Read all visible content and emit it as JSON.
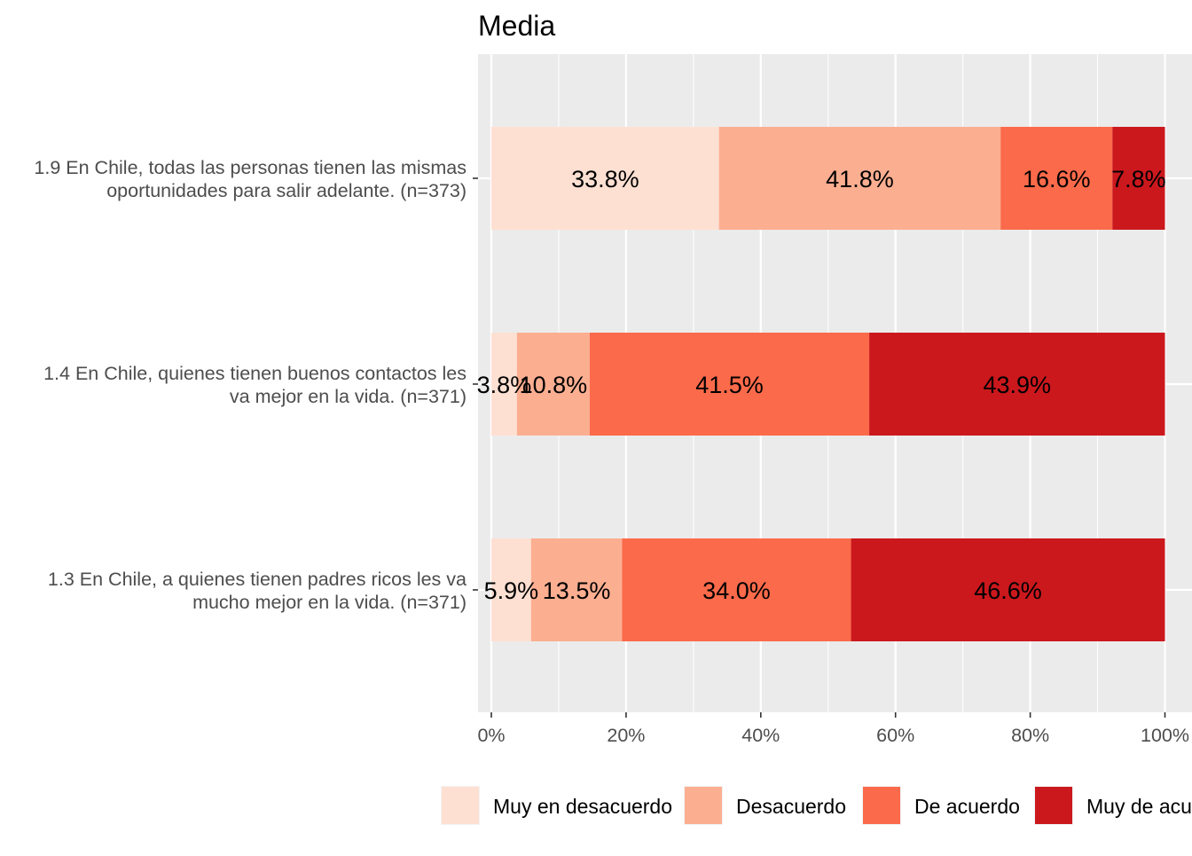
{
  "chart_data": {
    "type": "bar",
    "orientation": "horizontal",
    "stacked": true,
    "title": "Media",
    "xlabel": "",
    "ylabel": "",
    "xlim": [
      0,
      100
    ],
    "x_ticks": [
      "0%",
      "20%",
      "40%",
      "60%",
      "80%",
      "100%"
    ],
    "grid": true,
    "legend_position": "bottom",
    "categories": [
      "1.9 En Chile, todas las personas tienen las mismas oportunidades para salir adelante. (n=373)",
      "1.4 En Chile, quienes tienen buenos contactos les va mejor en la vida. (n=371)",
      "1.3 En Chile, a quienes tienen padres ricos les va mucho mejor en la vida. (n=371)"
    ],
    "category_lines": [
      [
        "1.9 En Chile, todas las personas tienen las mismas",
        "oportunidades para salir adelante. (n=373)"
      ],
      [
        "1.4 En Chile, quienes tienen buenos contactos les",
        "va mejor en la vida. (n=371)"
      ],
      [
        "1.3 En Chile, a quienes tienen padres ricos les va",
        "mucho mejor en la vida. (n=371)"
      ]
    ],
    "series": [
      {
        "name": "Muy en desacuerdo",
        "color": "#FEE0D2",
        "values": [
          33.8,
          3.8,
          5.9
        ],
        "labels": [
          "33.8%",
          "3.8%",
          "5.9%"
        ]
      },
      {
        "name": "Desacuerdo",
        "color": "#FCAE91",
        "values": [
          41.8,
          10.8,
          13.5
        ],
        "labels": [
          "41.8%",
          "10.8%",
          "13.5%"
        ]
      },
      {
        "name": "De acuerdo",
        "color": "#FB6A4A",
        "values": [
          16.6,
          41.5,
          34.0
        ],
        "labels": [
          "16.6%",
          "41.5%",
          "34.0%"
        ]
      },
      {
        "name": "Muy de acuerdo",
        "color": "#CB181D",
        "values": [
          7.8,
          43.9,
          46.6
        ],
        "labels": [
          "7.8%",
          "43.9%",
          "46.6%"
        ]
      }
    ]
  }
}
